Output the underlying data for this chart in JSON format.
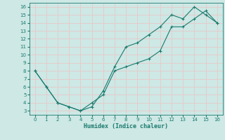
{
  "line1_x": [
    0,
    1,
    2,
    3,
    4,
    5,
    6,
    7,
    8,
    9,
    10,
    11,
    12,
    13,
    14,
    15,
    16
  ],
  "line1_y": [
    8,
    6,
    4,
    3.5,
    3,
    3.5,
    5.5,
    8.5,
    11,
    11.5,
    12.5,
    13.5,
    15,
    14.5,
    16,
    15,
    14
  ],
  "line2_x": [
    0,
    1,
    2,
    3,
    4,
    5,
    6,
    7,
    8,
    9,
    10,
    11,
    12,
    13,
    14,
    15,
    16
  ],
  "line2_y": [
    8,
    6,
    4,
    3.5,
    3,
    4,
    5,
    8,
    8.5,
    9,
    9.5,
    10.5,
    13.5,
    13.5,
    14.5,
    15.5,
    14
  ],
  "line_color": "#1a7a6e",
  "bg_color": "#cde8e5",
  "grid_color": "#e8c8c8",
  "xlabel": "Humidex (Indice chaleur)",
  "xlim": [
    -0.5,
    16.5
  ],
  "ylim": [
    2.5,
    16.5
  ],
  "xticks": [
    0,
    1,
    2,
    3,
    4,
    5,
    6,
    7,
    8,
    9,
    10,
    11,
    12,
    13,
    14,
    15,
    16
  ],
  "yticks": [
    3,
    4,
    5,
    6,
    7,
    8,
    9,
    10,
    11,
    12,
    13,
    14,
    15,
    16
  ]
}
